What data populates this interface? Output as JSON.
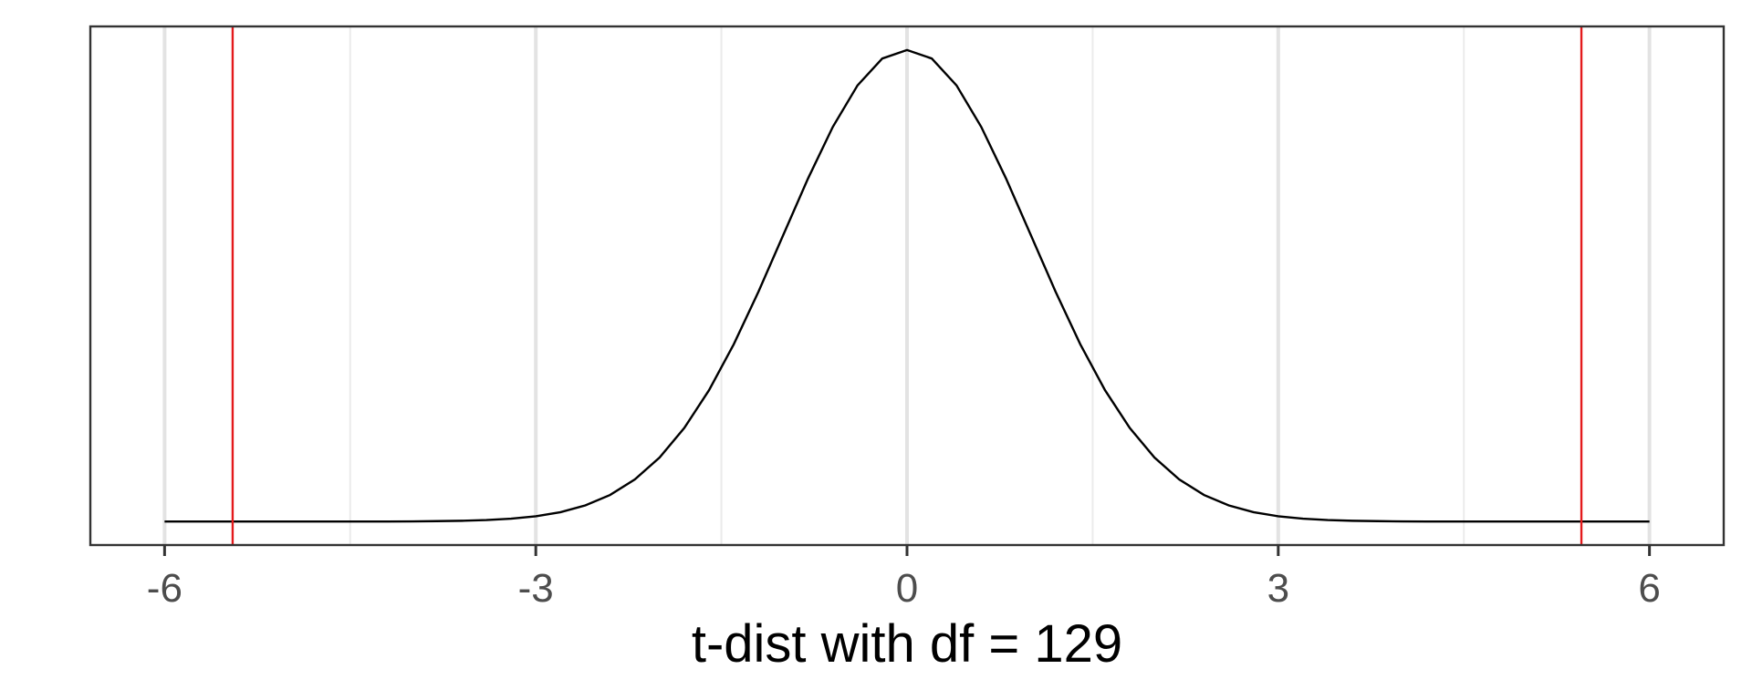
{
  "chart_data": {
    "type": "line",
    "xlabel": "t-dist with df = 129",
    "x": [
      -6,
      -5.8,
      -5.6,
      -5.4,
      -5.2,
      -5,
      -4.8,
      -4.6,
      -4.4,
      -4.2,
      -4,
      -3.8,
      -3.6,
      -3.4,
      -3.2,
      -3,
      -2.8,
      -2.6,
      -2.4,
      -2.2,
      -2,
      -1.8,
      -1.6,
      -1.4,
      -1.2,
      -1,
      -0.8,
      -0.6,
      -0.4,
      -0.2,
      0,
      0.2,
      0.4,
      0.6,
      0.8,
      1,
      1.2,
      1.4,
      1.6,
      1.8,
      2,
      2.2,
      2.4,
      2.6,
      2.8,
      3,
      3.2,
      3.4,
      3.6,
      3.8,
      4,
      4.2,
      4.4,
      4.6,
      4.8,
      5,
      5.2,
      5.4,
      5.6,
      5.8,
      6
    ],
    "values": [
      0,
      0,
      0,
      0,
      0,
      0,
      0,
      0,
      0,
      0,
      0.0001,
      0.0003,
      0.0006,
      0.0012,
      0.0024,
      0.0044,
      0.0079,
      0.0136,
      0.0224,
      0.0355,
      0.054,
      0.079,
      0.1109,
      0.1497,
      0.1942,
      0.242,
      0.2897,
      0.3332,
      0.3683,
      0.391,
      0.3982,
      0.391,
      0.3683,
      0.3332,
      0.2897,
      0.242,
      0.1942,
      0.1497,
      0.1109,
      0.079,
      0.054,
      0.0355,
      0.0224,
      0.0136,
      0.0079,
      0.0044,
      0.0024,
      0.0012,
      0.0006,
      0.0003,
      0.0001,
      0,
      0,
      0,
      0,
      0,
      0,
      0,
      0,
      0,
      0
    ],
    "color": "#000000",
    "xlim": [
      -6.6,
      6.6
    ],
    "ylim": [
      -0.0199,
      0.4181
    ],
    "xticks": [
      -6,
      -3,
      0,
      3,
      6
    ],
    "xminor": [
      -4.5,
      -1.5,
      1.5,
      4.5
    ],
    "grid": true,
    "vlines": [
      -5.45,
      5.45
    ],
    "vline_color": "#e41a1c"
  }
}
